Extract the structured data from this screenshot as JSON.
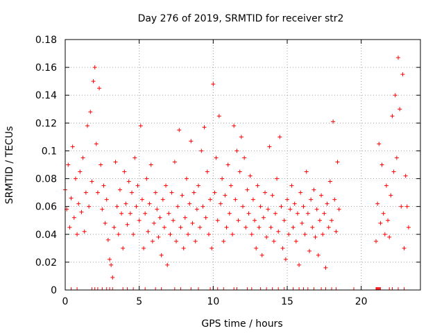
{
  "chart_data": {
    "type": "scatter",
    "title": "Day 276 of 2019, SRMTID for receiver str2",
    "xlabel": "GPS time / hours",
    "ylabel": "SRMTID / TECUs",
    "xlim": [
      0,
      24
    ],
    "ylim": [
      0,
      0.18
    ],
    "x_ticks": [
      0,
      5,
      10,
      15,
      20
    ],
    "x_tick_labels": [
      "0",
      "5",
      "10",
      "15",
      "20"
    ],
    "y_ticks": [
      0,
      0.02,
      0.04,
      0.06,
      0.08,
      0.1,
      0.12,
      0.14,
      0.16,
      0.18
    ],
    "y_tick_labels": [
      "0",
      "0.02",
      "0.04",
      "0.06",
      "0.08",
      "0.1",
      "0.12",
      "0.14",
      "0.16",
      "0.18"
    ],
    "grid": true,
    "marker": "+",
    "color": "#ff0000",
    "series": [
      {
        "name": "str2",
        "points": [
          [
            0.0,
            0.072
          ],
          [
            0.1,
            0.058
          ],
          [
            0.2,
            0.09
          ],
          [
            0.3,
            0.045
          ],
          [
            0.4,
            0.066
          ],
          [
            0.5,
            0.103
          ],
          [
            0.6,
            0.052
          ],
          [
            0.7,
            0.08
          ],
          [
            0.8,
            0.04
          ],
          [
            0.9,
            0.062
          ],
          [
            1.0,
            0.085
          ],
          [
            1.1,
            0.056
          ],
          [
            1.2,
            0.095
          ],
          [
            1.3,
            0.042
          ],
          [
            1.4,
            0.07
          ],
          [
            1.5,
            0.118
          ],
          [
            1.6,
            0.06
          ],
          [
            1.7,
            0.128
          ],
          [
            1.8,
            0.078
          ],
          [
            1.9,
            0.15
          ],
          [
            2.0,
            0.16
          ],
          [
            2.1,
            0.105
          ],
          [
            2.2,
            0.07
          ],
          [
            2.3,
            0.145
          ],
          [
            2.4,
            0.09
          ],
          [
            2.5,
            0.058
          ],
          [
            2.6,
            0.075
          ],
          [
            2.7,
            0.048
          ],
          [
            2.8,
            0.065
          ],
          [
            2.9,
            0.036
          ],
          [
            3.0,
            0.022
          ],
          [
            3.1,
            0.018
          ],
          [
            3.2,
            0.009
          ],
          [
            3.3,
            0.045
          ],
          [
            3.4,
            0.092
          ],
          [
            3.5,
            0.06
          ],
          [
            3.6,
            0.04
          ],
          [
            3.7,
            0.072
          ],
          [
            3.8,
            0.055
          ],
          [
            3.9,
            0.03
          ],
          [
            4.0,
            0.085
          ],
          [
            4.1,
            0.062
          ],
          [
            4.2,
            0.047
          ],
          [
            4.3,
            0.078
          ],
          [
            4.4,
            0.055
          ],
          [
            4.5,
            0.07
          ],
          [
            4.6,
            0.04
          ],
          [
            4.7,
            0.095
          ],
          [
            4.8,
            0.06
          ],
          [
            4.9,
            0.075
          ],
          [
            5.0,
            0.05
          ],
          [
            5.1,
            0.118
          ],
          [
            5.2,
            0.065
          ],
          [
            5.3,
            0.03
          ],
          [
            5.4,
            0.055
          ],
          [
            5.5,
            0.08
          ],
          [
            5.6,
            0.042
          ],
          [
            5.7,
            0.062
          ],
          [
            5.8,
            0.09
          ],
          [
            5.9,
            0.035
          ],
          [
            6.0,
            0.048
          ],
          [
            6.1,
            0.07
          ],
          [
            6.2,
            0.058
          ],
          [
            6.3,
            0.038
          ],
          [
            6.4,
            0.052
          ],
          [
            6.5,
            0.025
          ],
          [
            6.6,
            0.065
          ],
          [
            6.7,
            0.045
          ],
          [
            6.8,
            0.075
          ],
          [
            6.9,
            0.018
          ],
          [
            7.0,
            0.055
          ],
          [
            7.1,
            0.04
          ],
          [
            7.2,
            0.07
          ],
          [
            7.3,
            0.05
          ],
          [
            7.4,
            0.092
          ],
          [
            7.5,
            0.035
          ],
          [
            7.6,
            0.06
          ],
          [
            7.7,
            0.115
          ],
          [
            7.8,
            0.045
          ],
          [
            7.9,
            0.068
          ],
          [
            8.0,
            0.03
          ],
          [
            8.1,
            0.052
          ],
          [
            8.2,
            0.08
          ],
          [
            8.3,
            0.04
          ],
          [
            8.4,
            0.062
          ],
          [
            8.5,
            0.107
          ],
          [
            8.6,
            0.048
          ],
          [
            8.7,
            0.07
          ],
          [
            8.8,
            0.035
          ],
          [
            8.9,
            0.058
          ],
          [
            9.0,
            0.075
          ],
          [
            9.1,
            0.045
          ],
          [
            9.2,
            0.1
          ],
          [
            9.3,
            0.06
          ],
          [
            9.4,
            0.117
          ],
          [
            9.5,
            0.052
          ],
          [
            9.6,
            0.085
          ],
          [
            9.7,
            0.04
          ],
          [
            9.8,
            0.065
          ],
          [
            9.9,
            0.03
          ],
          [
            10.0,
            0.148
          ],
          [
            10.1,
            0.07
          ],
          [
            10.2,
            0.095
          ],
          [
            10.3,
            0.05
          ],
          [
            10.4,
            0.125
          ],
          [
            10.5,
            0.062
          ],
          [
            10.6,
            0.08
          ],
          [
            10.7,
            0.035
          ],
          [
            10.8,
            0.068
          ],
          [
            10.9,
            0.045
          ],
          [
            11.0,
            0.09
          ],
          [
            11.1,
            0.055
          ],
          [
            11.2,
            0.075
          ],
          [
            11.3,
            0.04
          ],
          [
            11.4,
            0.118
          ],
          [
            11.5,
            0.065
          ],
          [
            11.6,
            0.1
          ],
          [
            11.7,
            0.05
          ],
          [
            11.8,
            0.085
          ],
          [
            11.9,
            0.11
          ],
          [
            12.0,
            0.06
          ],
          [
            12.1,
            0.095
          ],
          [
            12.2,
            0.045
          ],
          [
            12.3,
            0.072
          ],
          [
            12.4,
            0.055
          ],
          [
            12.5,
            0.082
          ],
          [
            12.6,
            0.04
          ],
          [
            12.7,
            0.065
          ],
          [
            12.8,
            0.05
          ],
          [
            12.9,
            0.03
          ],
          [
            13.0,
            0.075
          ],
          [
            13.1,
            0.045
          ],
          [
            13.2,
            0.06
          ],
          [
            13.3,
            0.025
          ],
          [
            13.4,
            0.052
          ],
          [
            13.5,
            0.07
          ],
          [
            13.6,
            0.038
          ],
          [
            13.7,
            0.058
          ],
          [
            13.8,
            0.103
          ],
          [
            13.9,
            0.045
          ],
          [
            14.0,
            0.068
          ],
          [
            14.1,
            0.035
          ],
          [
            14.2,
            0.055
          ],
          [
            14.3,
            0.08
          ],
          [
            14.4,
            0.042
          ],
          [
            14.5,
            0.11
          ],
          [
            14.6,
            0.06
          ],
          [
            14.7,
            0.03
          ],
          [
            14.8,
            0.05
          ],
          [
            14.9,
            0.022
          ],
          [
            15.0,
            0.065
          ],
          [
            15.1,
            0.04
          ],
          [
            15.2,
            0.058
          ],
          [
            15.3,
            0.075
          ],
          [
            15.4,
            0.045
          ],
          [
            15.5,
            0.062
          ],
          [
            15.6,
            0.035
          ],
          [
            15.7,
            0.055
          ],
          [
            15.8,
            0.018
          ],
          [
            15.9,
            0.07
          ],
          [
            16.0,
            0.048
          ],
          [
            16.1,
            0.06
          ],
          [
            16.2,
            0.04
          ],
          [
            16.3,
            0.085
          ],
          [
            16.4,
            0.055
          ],
          [
            16.5,
            0.028
          ],
          [
            16.6,
            0.065
          ],
          [
            16.7,
            0.045
          ],
          [
            16.8,
            0.072
          ],
          [
            16.9,
            0.038
          ],
          [
            17.0,
            0.058
          ],
          [
            17.1,
            0.025
          ],
          [
            17.2,
            0.05
          ],
          [
            17.3,
            0.068
          ],
          [
            17.4,
            0.04
          ],
          [
            17.5,
            0.055
          ],
          [
            17.6,
            0.016
          ],
          [
            17.7,
            0.062
          ],
          [
            17.8,
            0.045
          ],
          [
            17.9,
            0.078
          ],
          [
            18.0,
            0.05
          ],
          [
            18.1,
            0.121
          ],
          [
            18.2,
            0.065
          ],
          [
            18.3,
            0.042
          ],
          [
            18.4,
            0.092
          ],
          [
            18.5,
            0.058
          ],
          [
            21.0,
            0.035
          ],
          [
            21.1,
            0.062
          ],
          [
            21.2,
            0.105
          ],
          [
            21.3,
            0.048
          ],
          [
            21.4,
            0.09
          ],
          [
            21.5,
            0.055
          ],
          [
            21.6,
            0.04
          ],
          [
            21.7,
            0.075
          ],
          [
            21.8,
            0.05
          ],
          [
            21.9,
            0.038
          ],
          [
            22.0,
            0.068
          ],
          [
            22.1,
            0.125
          ],
          [
            22.2,
            0.085
          ],
          [
            22.3,
            0.14
          ],
          [
            22.4,
            0.095
          ],
          [
            22.5,
            0.167
          ],
          [
            22.6,
            0.13
          ],
          [
            22.7,
            0.06
          ],
          [
            22.8,
            0.155
          ],
          [
            22.9,
            0.03
          ],
          [
            23.0,
            0.082
          ],
          [
            23.1,
            0.06
          ],
          [
            23.2,
            0.045
          ]
        ]
      }
    ],
    "zero_markers_x": [
      0.4,
      0.8,
      1.8,
      2.0,
      2.2,
      2.5,
      2.8,
      3.0,
      3.2,
      3.9,
      4.2,
      4.6,
      5.4,
      6.1,
      6.5,
      7.4,
      7.8,
      8.5,
      9.0,
      9.8,
      10.0,
      10.3,
      10.7,
      11.4,
      11.6,
      12.3,
      12.6,
      13.2,
      13.6,
      14.0,
      14.4,
      14.8,
      15.4,
      15.8,
      16.1,
      16.4,
      16.8,
      17.3,
      17.6,
      18.0,
      18.3,
      19.5,
      21.0,
      21.05,
      21.1,
      21.15,
      21.2,
      21.25,
      21.3,
      21.9,
      22.1,
      22.5,
      22.9
    ]
  }
}
